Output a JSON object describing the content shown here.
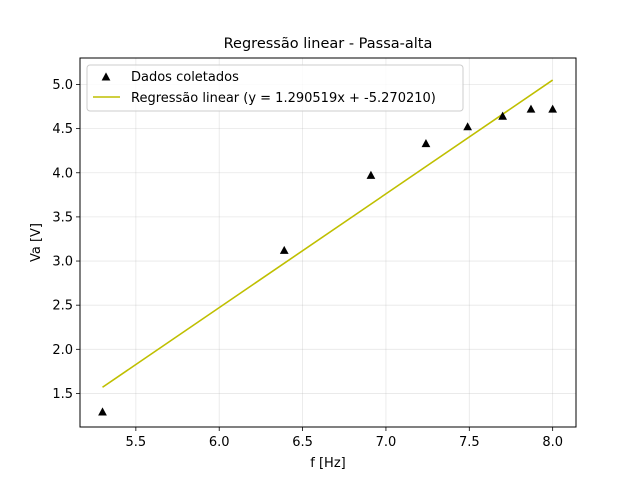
{
  "chart_data": {
    "type": "scatter",
    "title": "Regressão linear - Passa-alta",
    "xlabel": "f [Hz]",
    "ylabel": "Va [V]",
    "xlim": [
      5.165,
      8.14
    ],
    "ylim": [
      1.12,
      5.3
    ],
    "xticks": [
      5.5,
      6.0,
      6.5,
      7.0,
      7.5,
      8.0
    ],
    "xtick_labels": [
      "5.5",
      "6.0",
      "6.5",
      "7.0",
      "7.5",
      "8.0"
    ],
    "yticks": [
      1.5,
      2.0,
      2.5,
      3.0,
      3.5,
      4.0,
      4.5,
      5.0
    ],
    "ytick_labels": [
      "1.5",
      "2.0",
      "2.5",
      "3.0",
      "3.5",
      "4.0",
      "4.5",
      "5.0"
    ],
    "grid": true,
    "legend_position": "top-left",
    "series": [
      {
        "name": "Dados coletados",
        "kind": "scatter",
        "marker": "triangle-up",
        "color": "#000000",
        "x": [
          5.3,
          6.39,
          6.91,
          7.24,
          7.49,
          7.7,
          7.87,
          8.0
        ],
        "y": [
          1.29,
          3.12,
          3.97,
          4.33,
          4.52,
          4.64,
          4.72,
          4.72
        ]
      },
      {
        "name": "Regressão linear (y = 1.290519x + -5.270210)",
        "kind": "line",
        "color": "#bfbf00",
        "slope": 1.290519,
        "intercept": -5.27021,
        "x": [
          5.3,
          8.0
        ],
        "y": [
          1.57,
          5.05
        ]
      }
    ]
  }
}
